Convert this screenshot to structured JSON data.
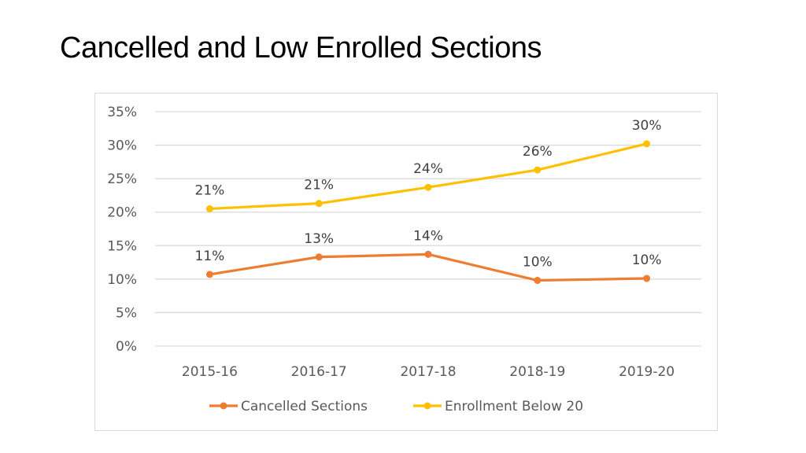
{
  "slide": {
    "title": "Cancelled and Low Enrolled Sections"
  },
  "chart_data": {
    "type": "line",
    "title": "",
    "xlabel": "",
    "ylabel": "",
    "categories": [
      "2015-16",
      "2016-17",
      "2017-18",
      "2018-19",
      "2019-20"
    ],
    "ylim": [
      0,
      35
    ],
    "yticks": [
      0,
      5,
      10,
      15,
      20,
      25,
      30,
      35
    ],
    "ytick_labels": [
      "0%",
      "5%",
      "10%",
      "15%",
      "20%",
      "25%",
      "30%",
      "35%"
    ],
    "grid": true,
    "legend_position": "bottom",
    "series": [
      {
        "name": "Cancelled Sections",
        "color": "#ED7D31",
        "values": [
          10.7,
          13.3,
          13.7,
          9.8,
          10.1
        ],
        "labels": [
          "11%",
          "13%",
          "14%",
          "10%",
          "10%"
        ]
      },
      {
        "name": "Enrollment Below 20",
        "color": "#FFC000",
        "values": [
          20.5,
          21.3,
          23.7,
          26.3,
          30.2
        ],
        "labels": [
          "21%",
          "21%",
          "24%",
          "26%",
          "30%"
        ]
      }
    ]
  }
}
